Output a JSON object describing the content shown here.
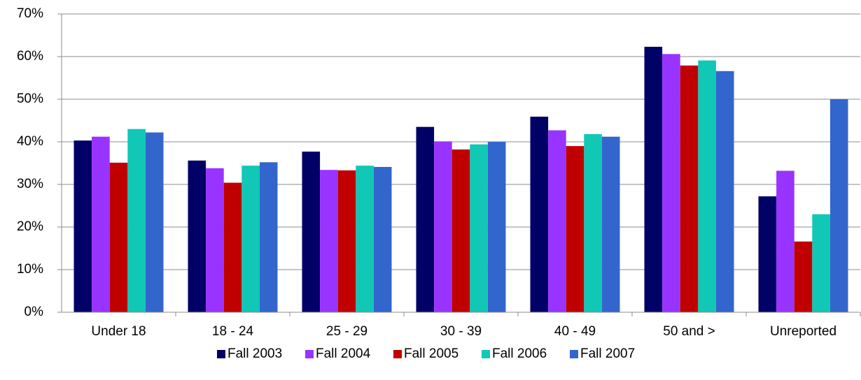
{
  "chart_data": {
    "type": "bar",
    "categories": [
      "Under 18",
      "18 - 24",
      "25 - 29",
      "30 - 39",
      "40 - 49",
      "50 and >",
      "Unreported"
    ],
    "series": [
      {
        "name": "Fall 2003",
        "color": "#000066",
        "values": [
          40.3,
          35.6,
          37.7,
          43.5,
          45.9,
          62.3,
          27.2
        ]
      },
      {
        "name": "Fall 2004",
        "color": "#9933ff",
        "values": [
          41.2,
          33.8,
          33.4,
          40.1,
          42.7,
          60.6,
          33.2
        ]
      },
      {
        "name": "Fall 2005",
        "color": "#c00000",
        "values": [
          35.1,
          30.4,
          33.3,
          38.2,
          39.0,
          57.9,
          16.6
        ]
      },
      {
        "name": "Fall 2006",
        "color": "#11c7b6",
        "values": [
          43.0,
          34.4,
          34.4,
          39.4,
          41.8,
          59.1,
          23.0
        ]
      },
      {
        "name": "Fall 2007",
        "color": "#3366cc",
        "values": [
          42.2,
          35.2,
          34.1,
          40.0,
          41.2,
          56.6,
          50.0
        ]
      }
    ],
    "ylim": [
      0,
      70
    ],
    "yticks": [
      {
        "value": 0,
        "label": "0%"
      },
      {
        "value": 10,
        "label": "10%"
      },
      {
        "value": 20,
        "label": "20%"
      },
      {
        "value": 30,
        "label": "30%"
      },
      {
        "value": 40,
        "label": "40%"
      },
      {
        "value": 50,
        "label": "50%"
      },
      {
        "value": 60,
        "label": "60%"
      },
      {
        "value": 70,
        "label": "70%"
      }
    ],
    "grid": true,
    "legend": "bottom"
  }
}
